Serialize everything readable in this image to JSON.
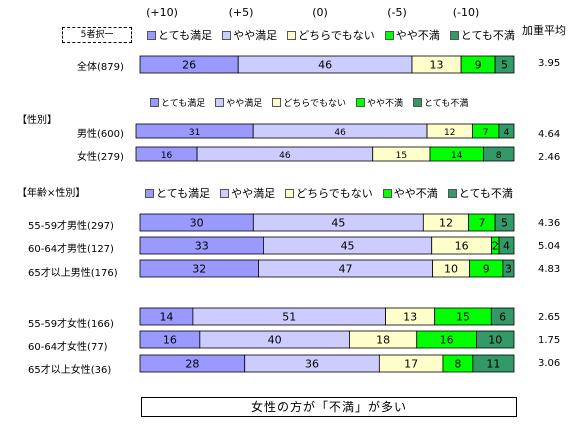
{
  "colors": {
    "very_satisfied": "#9999ff",
    "somewhat_satisfied": "#ccccff",
    "neutral": "#ffffcc",
    "somewhat_dissatisfied": "#00ff00",
    "very_dissatisfied": "#339966"
  },
  "scale_labels": [
    "(+10)",
    "(+5)",
    "(0)",
    "(-5)",
    "(-10)"
  ],
  "weighted_avg_header": "加重平均",
  "choose_five_label": "5者択一",
  "section_gender": "【性別】",
  "section_age_gender": "【年齢×性別】",
  "footer_text": "女性の方が「不満」が多い",
  "chart_data": {
    "type": "bar",
    "orientation": "horizontal",
    "stacked": true,
    "percent_scale": true,
    "categories_legend": [
      "とても満足",
      "やや満足",
      "どちらでもない",
      "やや不満",
      "とても不満"
    ],
    "rows": [
      {
        "label": "全体(879)",
        "values": [
          26,
          46,
          13,
          9,
          5
        ],
        "avg": "3.95"
      },
      {
        "label": "男性(600)",
        "values": [
          31,
          46,
          12,
          7,
          4
        ],
        "avg": "4.64"
      },
      {
        "label": "女性(279)",
        "values": [
          16,
          46,
          15,
          14,
          8
        ],
        "avg": "2.46"
      },
      {
        "label": "55-59才男性(297)",
        "values": [
          30,
          45,
          12,
          7,
          5
        ],
        "avg": "4.36"
      },
      {
        "label": "60-64才男性(127)",
        "values": [
          33,
          45,
          16,
          2,
          4
        ],
        "avg": "5.04"
      },
      {
        "label": "65才以上男性(176)",
        "values": [
          32,
          47,
          10,
          9,
          3
        ],
        "avg": "4.83"
      },
      {
        "label": "55-59才女性(166)",
        "values": [
          14,
          51,
          13,
          15,
          6
        ],
        "avg": "2.65"
      },
      {
        "label": "60-64才女性(77)",
        "values": [
          16,
          40,
          18,
          16,
          10
        ],
        "avg": "1.75"
      },
      {
        "label": "65才以上女性(36)",
        "values": [
          28,
          36,
          17,
          8,
          11
        ],
        "avg": "3.06"
      }
    ]
  }
}
